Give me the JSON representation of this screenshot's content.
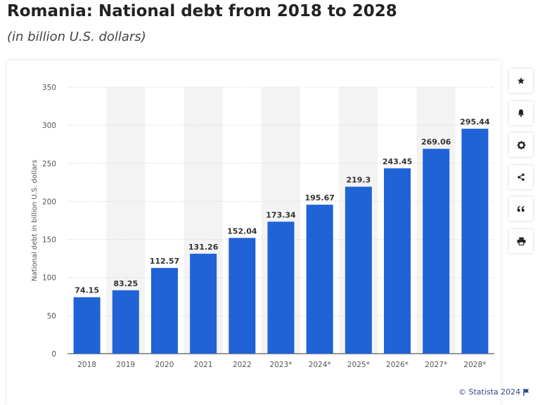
{
  "header": {
    "title": "Romania: National debt from 2018 to 2028",
    "subtitle": "(in billion U.S. dollars)"
  },
  "toolbar": {
    "buttons": [
      {
        "name": "favorite",
        "icon": "star-icon"
      },
      {
        "name": "notifications",
        "icon": "bell-icon"
      },
      {
        "name": "settings",
        "icon": "gear-icon"
      },
      {
        "name": "share",
        "icon": "share-icon"
      },
      {
        "name": "cite",
        "icon": "quote-icon"
      },
      {
        "name": "print",
        "icon": "printer-icon"
      }
    ]
  },
  "footer": {
    "credit": "© Statista 2024",
    "flag_icon": "flag-icon"
  },
  "chart_data": {
    "type": "bar",
    "categories": [
      "2018",
      "2019",
      "2020",
      "2021",
      "2022",
      "2023*",
      "2024*",
      "2025*",
      "2026*",
      "2027*",
      "2028*"
    ],
    "values": [
      74.15,
      83.25,
      112.57,
      131.26,
      152.04,
      173.34,
      195.67,
      219.3,
      243.45,
      269.06,
      295.44
    ],
    "value_labels": [
      "74.15",
      "83.25",
      "112.57",
      "131.26",
      "152.04",
      "173.34",
      "195.67",
      "219.3",
      "243.45",
      "269.06",
      "295.44"
    ],
    "ylabel": "National debt in billion U.S. dollars",
    "xlabel": "",
    "ylim": [
      0,
      350
    ],
    "yticks": [
      0,
      50,
      100,
      150,
      200,
      250,
      300,
      350
    ],
    "grid": true,
    "legend": "none",
    "colors": {
      "bar": "#1f63d6",
      "band": "#f3f3f3",
      "grid": "#dcdcdc"
    }
  }
}
